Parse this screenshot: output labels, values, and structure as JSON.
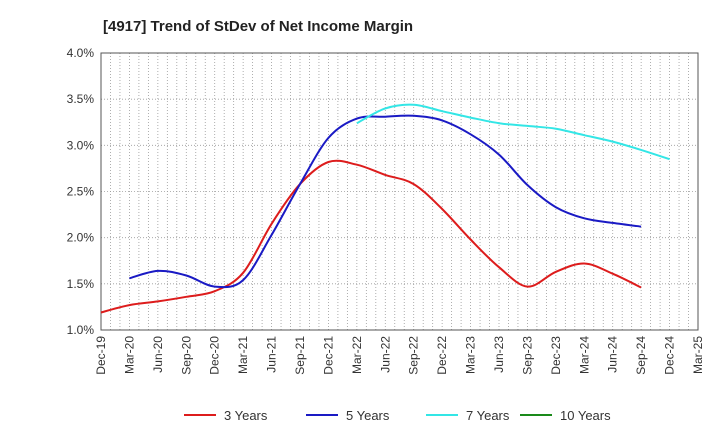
{
  "chart_data": {
    "type": "line",
    "title": "[4917]  Trend of StDev of Net Income Margin",
    "xlabel": "",
    "ylabel": "",
    "ylim": [
      1.0,
      4.0
    ],
    "y_ticks": [
      "1.0%",
      "1.5%",
      "2.0%",
      "2.5%",
      "3.0%",
      "3.5%",
      "4.0%"
    ],
    "x_ticks": [
      "Dec-19",
      "Mar-20",
      "Jun-20",
      "Sep-20",
      "Dec-20",
      "Mar-21",
      "Jun-21",
      "Sep-21",
      "Dec-21",
      "Mar-22",
      "Jun-22",
      "Sep-22",
      "Dec-22",
      "Mar-23",
      "Jun-23",
      "Sep-23",
      "Dec-23",
      "Mar-24",
      "Jun-24",
      "Sep-24",
      "Dec-24",
      "Mar-25"
    ],
    "grid": true,
    "legend_position": "bottom",
    "series": [
      {
        "name": "3 Years",
        "color": "#dd1c1c",
        "start_index": 0,
        "values": [
          1.19,
          1.27,
          1.31,
          1.36,
          1.42,
          1.62,
          2.15,
          2.58,
          2.82,
          2.79,
          2.68,
          2.58,
          2.31,
          1.98,
          1.68,
          1.47,
          1.63,
          1.72,
          1.61,
          1.46
        ]
      },
      {
        "name": "5 Years",
        "color": "#1a1ac4",
        "start_index": 1,
        "values": [
          1.56,
          1.64,
          1.59,
          1.47,
          1.54,
          2.03,
          2.58,
          3.08,
          3.29,
          3.31,
          3.32,
          3.27,
          3.12,
          2.9,
          2.57,
          2.33,
          2.21,
          2.16,
          2.12
        ]
      },
      {
        "name": "7 Years",
        "color": "#33e6e6",
        "start_index": 9,
        "values": [
          3.24,
          3.4,
          3.44,
          3.37,
          3.3,
          3.24,
          3.21,
          3.18,
          3.11,
          3.04,
          2.95,
          2.85
        ]
      },
      {
        "name": "10 Years",
        "color": "#1a8a1a",
        "start_index": 0,
        "values": []
      }
    ]
  }
}
